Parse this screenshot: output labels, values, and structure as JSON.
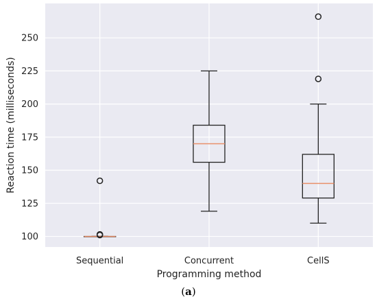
{
  "chart_data": {
    "type": "box",
    "categories": [
      "Sequential",
      "Concurrent",
      "CellS"
    ],
    "boxes": [
      {
        "category": "Sequential",
        "whisker_low": 100,
        "q1": 100,
        "median": 100,
        "q3": 100,
        "whisker_high": 100,
        "outliers": [
          142,
          101,
          101.5
        ]
      },
      {
        "category": "Concurrent",
        "whisker_low": 119,
        "q1": 156,
        "median": 170,
        "q3": 184,
        "whisker_high": 225,
        "outliers": []
      },
      {
        "category": "CellS",
        "whisker_low": 110,
        "q1": 129,
        "median": 140,
        "q3": 162,
        "whisker_high": 200,
        "outliers": [
          219,
          266
        ]
      }
    ],
    "ylim": [
      92,
      276
    ],
    "yticks": [
      100,
      125,
      150,
      175,
      200,
      225,
      250
    ],
    "ytick_labels": [
      "100",
      "125",
      "150",
      "175",
      "200",
      "225",
      "250"
    ],
    "xlabel": "Programming method",
    "ylabel": "Reaction time (milliseconds)",
    "grid": true,
    "colors": {
      "background": "#eaeaf2",
      "grid": "#ffffff",
      "box": "#222222",
      "median": "#e8906a"
    }
  },
  "caption": {
    "open": "(",
    "letter": "a",
    "close": ")"
  }
}
